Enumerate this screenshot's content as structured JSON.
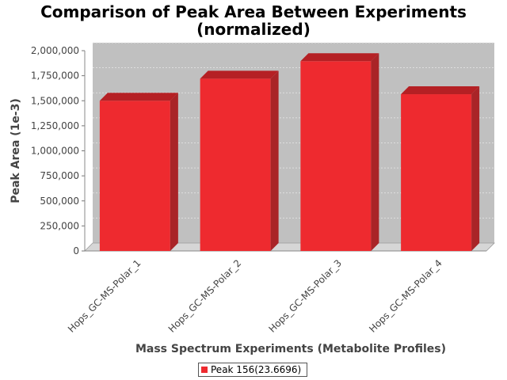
{
  "chart_data": {
    "type": "bar",
    "title_line1": "Comparison of Peak Area Between Experiments",
    "title_line2": "(normalized)",
    "xlabel": "Mass Spectrum Experiments (Metabolite Profiles)",
    "ylabel": "Peak Area (1e-3)",
    "categories": [
      "Hops_GC-MS-Polar_1",
      "Hops_GC-MS-Polar_2",
      "Hops_GC-MS-Polar_3",
      "Hops_GC-MS-Polar_4"
    ],
    "series": [
      {
        "name": "Peak 156(23.6696)",
        "values": [
          1500000,
          1720000,
          1895000,
          1565000
        ]
      }
    ],
    "ylim": [
      0,
      2000000
    ],
    "yticks": [
      0,
      250000,
      500000,
      750000,
      1000000,
      1250000,
      1500000,
      1750000,
      2000000
    ],
    "ytick_labels": [
      "0",
      "250,000",
      "500,000",
      "750,000",
      "1,000,000",
      "1,250,000",
      "1,500,000",
      "1,750,000",
      "2,000,000"
    ],
    "grid": true,
    "legend_position": "bottom",
    "colors": {
      "bar_front": "#ee2a2f",
      "bar_top": "#b52024",
      "bar_side": "#a92427",
      "plot_back": "#c0c0c0",
      "plot_floor": "#d6d6d6",
      "grid": "#e8e8e8"
    }
  }
}
